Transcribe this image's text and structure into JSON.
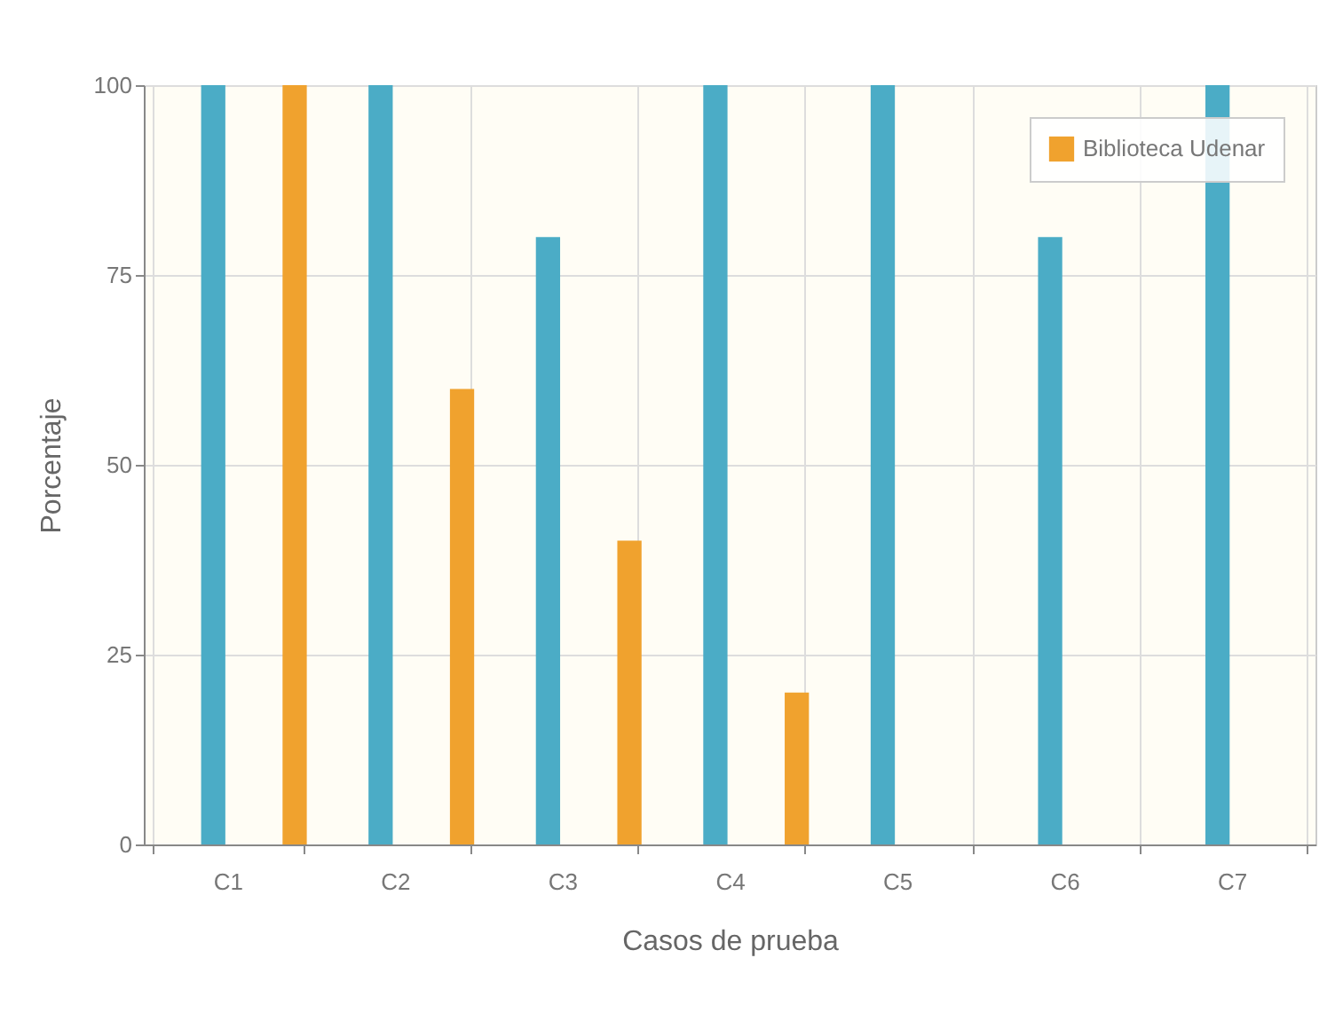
{
  "chart_data": {
    "type": "bar",
    "xlabel": "Casos de prueba",
    "ylabel": "Porcentaje",
    "categories": [
      "C1",
      "C2",
      "C3",
      "C4",
      "C5",
      "C6",
      "C7"
    ],
    "series": [
      {
        "color": "#4bacc6",
        "values": [
          100,
          100,
          80,
          100,
          100,
          80,
          100
        ]
      },
      {
        "name": "Biblioteca Udenar",
        "color": "#f0a22e",
        "values": [
          100,
          60,
          40,
          20,
          0,
          0,
          0
        ]
      }
    ],
    "ylim": [
      0,
      100
    ],
    "yticks": [
      0,
      25,
      50,
      75,
      100
    ],
    "grid": true,
    "legend": "top right"
  }
}
